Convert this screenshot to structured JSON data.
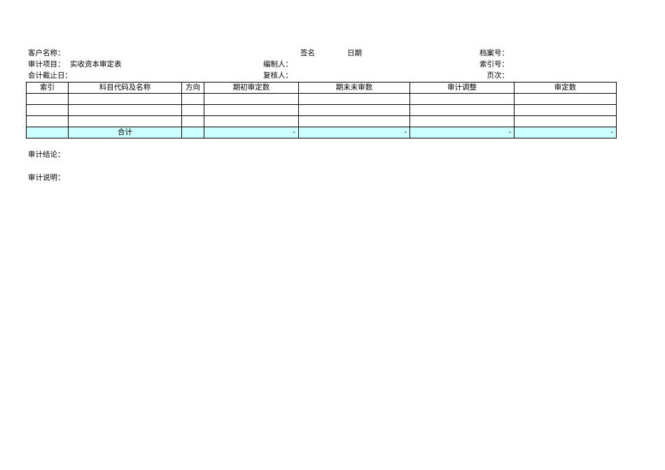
{
  "header": {
    "client_label": "客户名称：",
    "project_label": "审计项目：",
    "project_value": "实收资本审定表",
    "cutoff_label": "会计截止日：",
    "sign_label": "签名",
    "date_label": "日期",
    "preparer_label": "编制人：",
    "reviewer_label": "复核人：",
    "file_no_label": "档案号：",
    "index_no_label": "索引号：",
    "page_label": "页次："
  },
  "table": {
    "columns": [
      "索引",
      "科目代码及名称",
      "方向",
      "期初审定数",
      "期末未审数",
      "审计调整",
      "审定数"
    ],
    "total": {
      "label": "合计",
      "values": [
        "-",
        "-",
        "-",
        "-"
      ]
    }
  },
  "footer": {
    "conclusion_label": "审计结论：",
    "explanation_label": "审计说明："
  },
  "colors": {
    "total_row": "#ccffff"
  }
}
